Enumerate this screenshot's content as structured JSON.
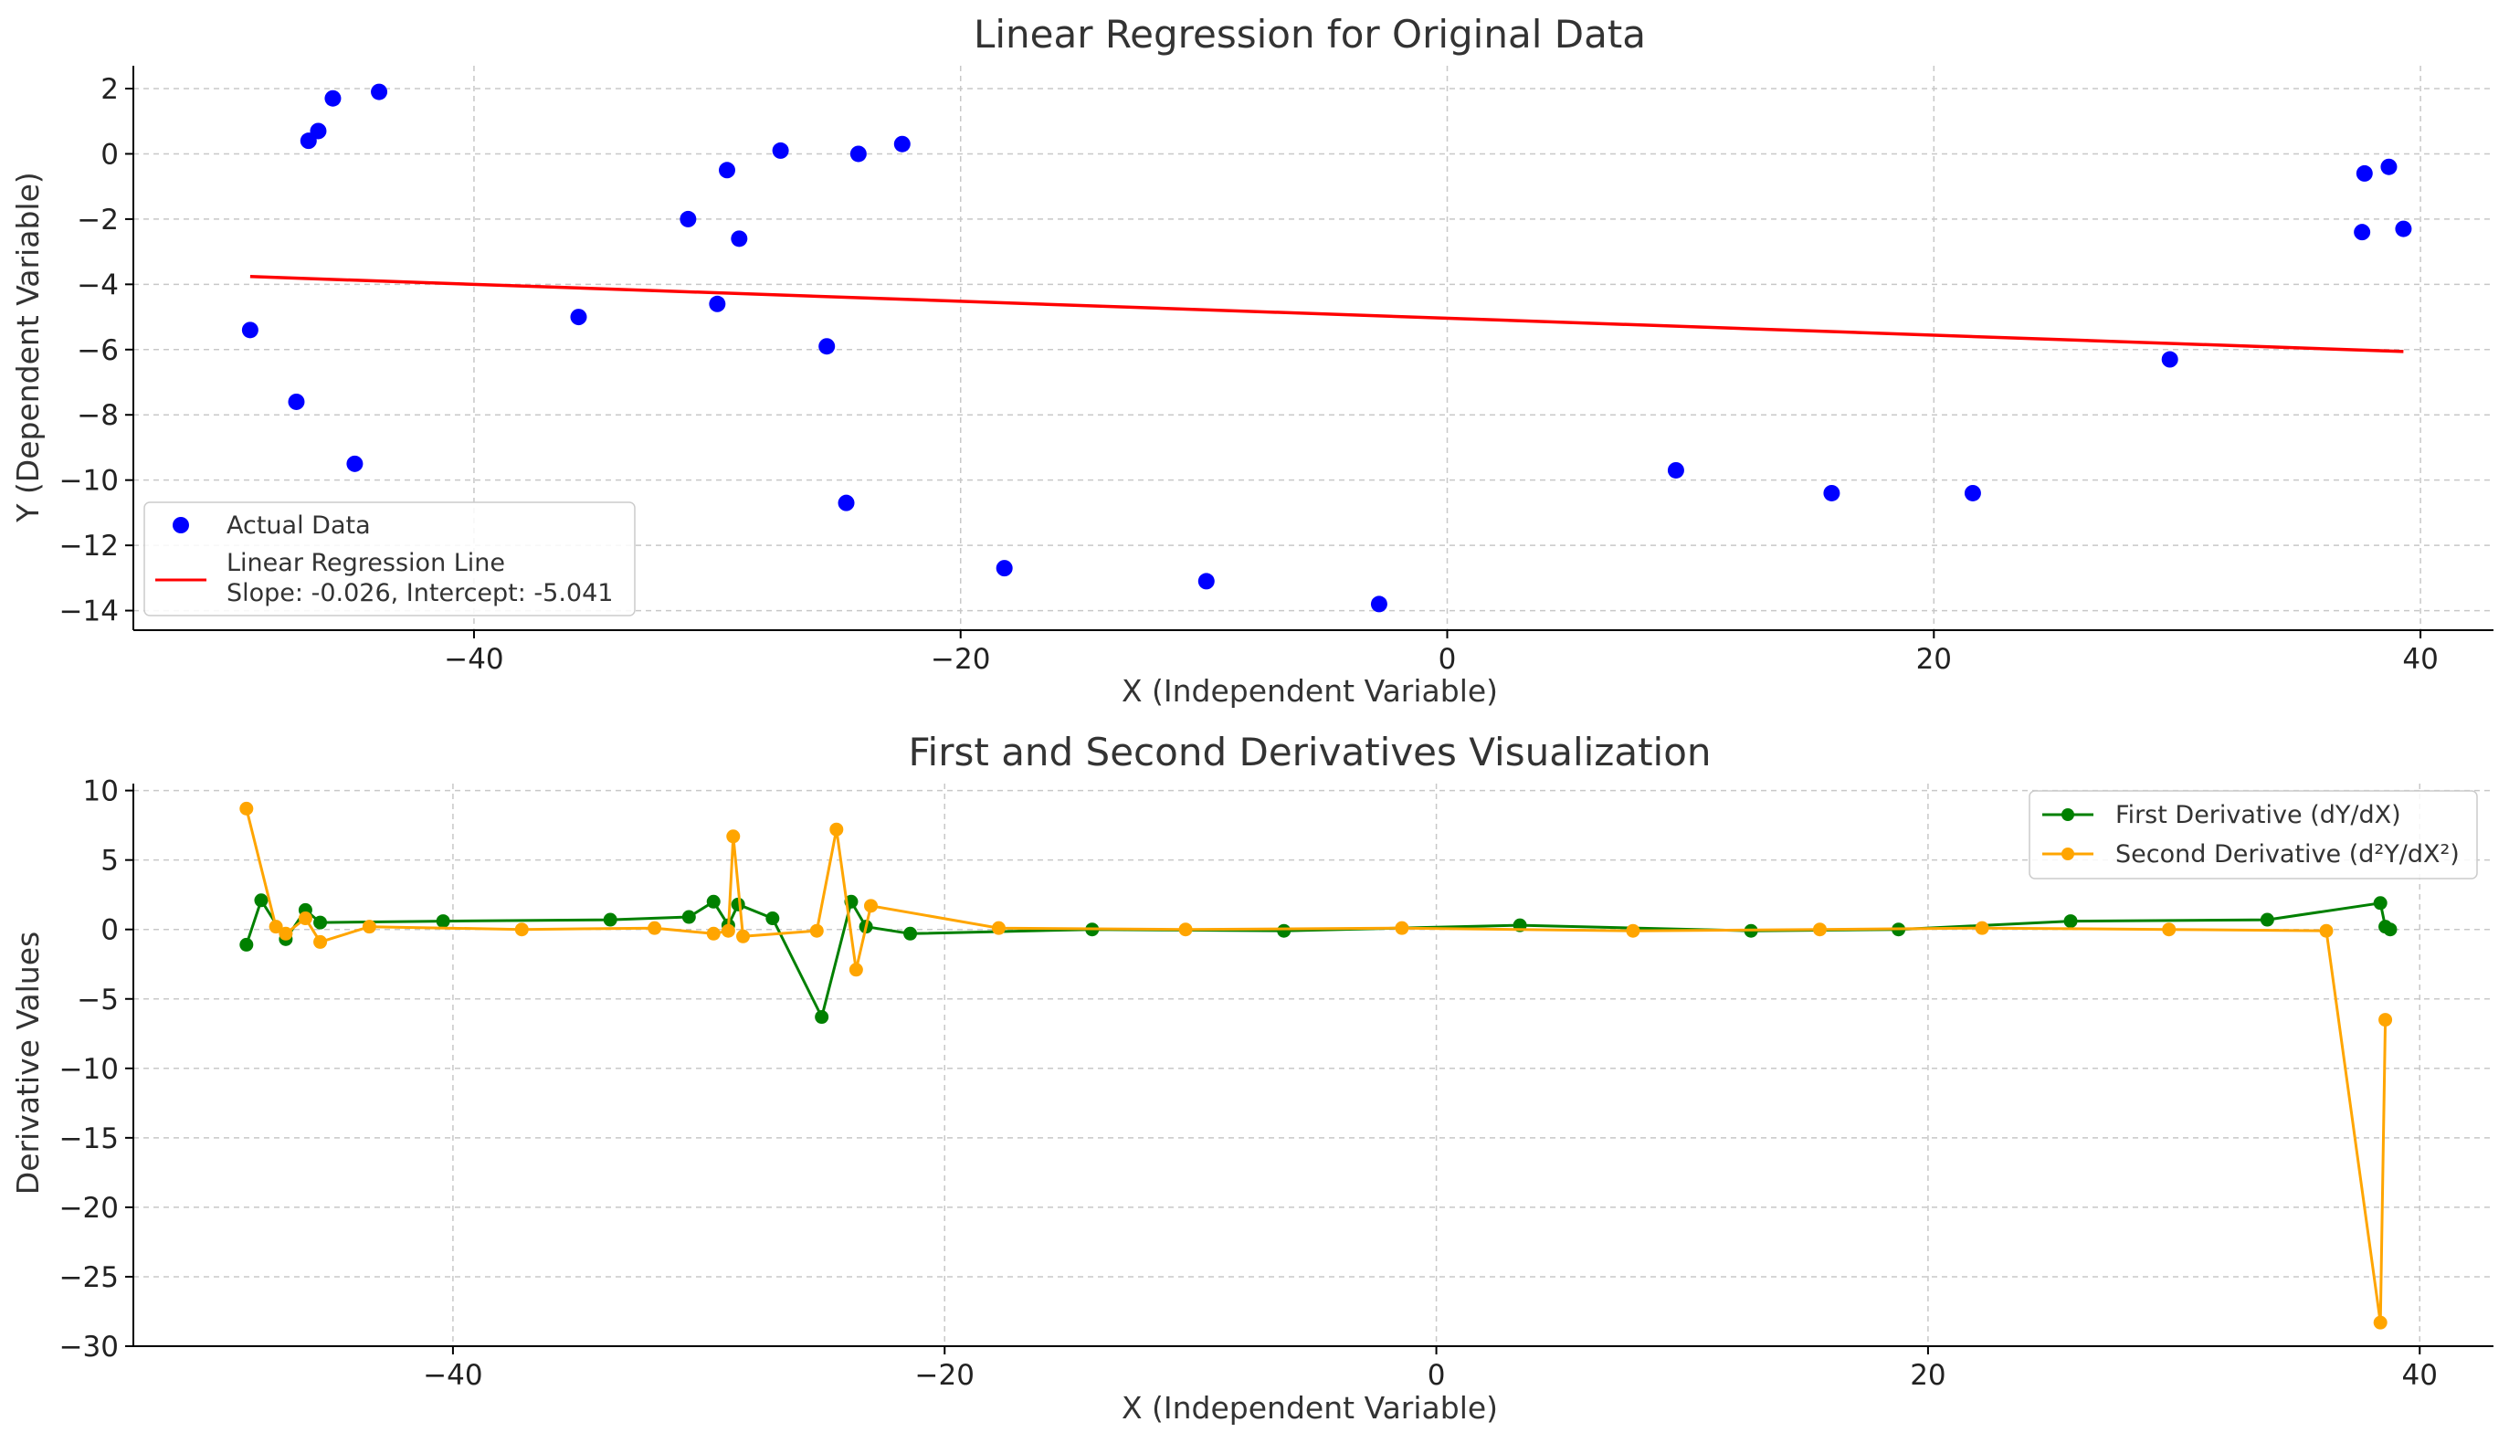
{
  "chart_data": [
    {
      "type": "scatter",
      "title": "Linear Regression for Original Data",
      "xlabel": "X (Independent Variable)",
      "ylabel": "Y (Dependent Variable)",
      "xlim": [
        -54,
        43
      ],
      "ylim": [
        -14.6,
        2.7
      ],
      "xticks": [
        -40,
        -20,
        0,
        20,
        40
      ],
      "yticks": [
        2,
        0,
        -2,
        -4,
        -6,
        -8,
        -10,
        -12,
        -14
      ],
      "xtick_labels": [
        "−40",
        "−20",
        "0",
        "20",
        "40"
      ],
      "ytick_labels": [
        "2",
        "0",
        "−2",
        "−4",
        "−6",
        "−8",
        "−10",
        "−12",
        "−14"
      ],
      "grid": true,
      "legend_position": "lower-left",
      "series": [
        {
          "name": "Actual Data",
          "kind": "scatter",
          "color": "#0000ff",
          "x": [
            -49.2,
            -47.3,
            -46.8,
            -46.4,
            -45.8,
            -44.9,
            -43.9,
            -35.7,
            -31.2,
            -30.0,
            -29.6,
            -29.1,
            -27.4,
            -25.5,
            -24.7,
            -24.2,
            -22.4,
            -18.2,
            -9.9,
            -2.8,
            9.4,
            15.8,
            21.6,
            29.7,
            37.6,
            37.7,
            38.7,
            39.3
          ],
          "y": [
            -5.4,
            -7.6,
            0.4,
            0.7,
            1.7,
            -9.5,
            1.9,
            -5.0,
            -2.0,
            -4.6,
            -0.5,
            -2.6,
            0.1,
            -5.9,
            -10.7,
            0.0,
            0.3,
            -12.7,
            -13.1,
            -13.8,
            -9.7,
            -10.4,
            -10.4,
            -6.3,
            -2.4,
            -0.6,
            -0.4,
            -2.3
          ]
        },
        {
          "name": "Linear Regression Line",
          "kind": "line",
          "color": "#ff0000",
          "x": [
            -49.2,
            39.3
          ],
          "y": [
            -3.76,
            -6.06
          ]
        }
      ],
      "legend": [
        {
          "label": "Actual Data"
        },
        {
          "label": "Linear Regression Line",
          "label2": "Slope: -0.026, Intercept: -5.041"
        }
      ]
    },
    {
      "type": "line",
      "title": "First and Second Derivatives Visualization",
      "xlabel": "X (Independent Variable)",
      "ylabel": "Derivative Values",
      "xlim": [
        -53,
        43
      ],
      "ylim": [
        -30,
        10.5
      ],
      "xticks": [
        -40,
        -20,
        0,
        20,
        40
      ],
      "yticks": [
        10,
        5,
        0,
        -5,
        -10,
        -15,
        -20,
        -25,
        -30
      ],
      "xtick_labels": [
        "−40",
        "−20",
        "0",
        "20",
        "40"
      ],
      "ytick_labels": [
        "10",
        "5",
        "0",
        "−5",
        "−10",
        "−15",
        "−20",
        "−25",
        "−30"
      ],
      "grid": true,
      "legend_position": "upper-right",
      "series": [
        {
          "name": "First Derivative (dY/dX)",
          "color": "#008000",
          "x": [
            -48.4,
            -47.8,
            -46.8,
            -46.0,
            -45.4,
            -40.4,
            -33.6,
            -30.4,
            -29.4,
            -28.8,
            -28.4,
            -27.0,
            -25.0,
            -23.8,
            -23.2,
            -21.4,
            -14.0,
            -6.2,
            3.4,
            12.8,
            18.8,
            25.8,
            33.8,
            38.4,
            38.6,
            38.8
          ],
          "y": [
            -1.1,
            2.1,
            -0.7,
            1.4,
            0.5,
            0.6,
            0.7,
            0.9,
            2.0,
            0.3,
            1.8,
            0.8,
            -6.3,
            2.0,
            0.2,
            -0.3,
            0.0,
            -0.1,
            0.3,
            -0.1,
            0.0,
            0.6,
            0.7,
            1.9,
            0.2,
            0.0
          ]
        },
        {
          "name": "Second Derivative (d²Y/dX²)",
          "color": "#ffa500",
          "x": [
            -48.4,
            -47.2,
            -46.8,
            -46.0,
            -45.4,
            -43.4,
            -37.2,
            -31.8,
            -29.4,
            -28.8,
            -28.6,
            -28.2,
            -25.2,
            -24.4,
            -23.6,
            -23.0,
            -17.8,
            -10.2,
            -1.4,
            8.0,
            15.6,
            22.2,
            29.8,
            36.2,
            38.4,
            38.6
          ],
          "y": [
            8.7,
            0.2,
            -0.3,
            0.8,
            -0.9,
            0.2,
            0.0,
            0.1,
            -0.3,
            -0.1,
            6.7,
            -0.5,
            -0.1,
            7.2,
            -2.9,
            1.7,
            0.1,
            0.0,
            0.1,
            -0.1,
            0.0,
            0.1,
            0.0,
            -0.1,
            -28.3,
            -6.5
          ]
        }
      ]
    }
  ]
}
